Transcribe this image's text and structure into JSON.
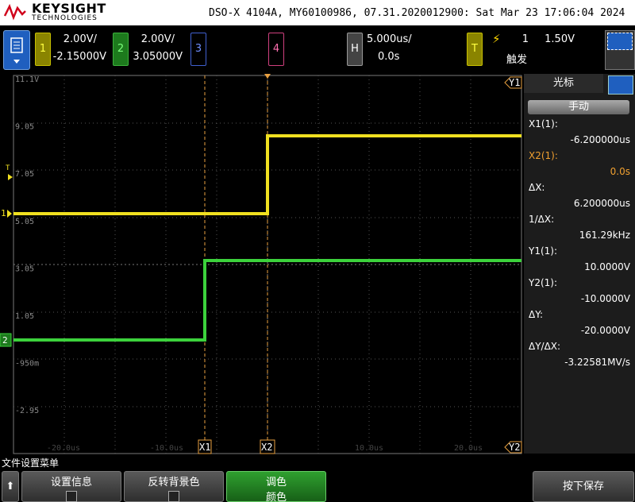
{
  "header": {
    "brand": "KEYSIGHT",
    "brand_sub": "TECHNOLOGIES",
    "status": "DSO-X 4104A, MY60100986, 07.31.2020012900: Sat Mar 23 17:06:04 2024"
  },
  "channels": [
    {
      "number": "1",
      "scale": "2.00V/",
      "offset": "-2.15000V"
    },
    {
      "number": "2",
      "scale": "2.00V/",
      "offset": "3.05000V"
    },
    {
      "number": "3"
    },
    {
      "number": "4"
    }
  ],
  "horizontal": {
    "label": "H",
    "scale": "5.000us/",
    "delay": "0.0s"
  },
  "trigger": {
    "label": "T",
    "source": "1",
    "level": "1.50V",
    "mode": "触发"
  },
  "graticule": {
    "y_labels": [
      "11.1V",
      "9.05",
      "7.05",
      "5.05",
      "3.05",
      "1.05",
      "-950m",
      "-2.95"
    ],
    "x_labels": [
      "-20.0us",
      "-10.0us",
      "10.0us",
      "20.0us"
    ]
  },
  "markers": {
    "y1": "Y1",
    "y2": "Y2",
    "x1": "X1",
    "x2": "X2",
    "trigger": "T",
    "ch1": "1",
    "ch2": "2"
  },
  "cursor_panel": {
    "title": "光标",
    "mode": "手动",
    "readouts": [
      {
        "label": "X1(1):",
        "value": "-6.200000us"
      },
      {
        "label": "X2(1):",
        "value": "0.0s"
      },
      {
        "label": "ΔX:",
        "value": "6.200000us"
      },
      {
        "label": "1/ΔX:",
        "value": "161.29kHz"
      },
      {
        "label": "Y1(1):",
        "value": "10.0000V"
      },
      {
        "label": "Y2(1):",
        "value": "-10.0000V"
      },
      {
        "label": "ΔY:",
        "value": "-20.0000V"
      },
      {
        "label": "ΔY/ΔX:",
        "value": "-3.22581MV/s"
      }
    ]
  },
  "softkeys": {
    "menu_title": "文件设置菜单",
    "buttons": [
      {
        "label": "设置信息"
      },
      {
        "label": "反转背景色"
      },
      {
        "label": "调色",
        "sub": "颜色"
      },
      {
        "label": "按下保存"
      }
    ]
  }
}
